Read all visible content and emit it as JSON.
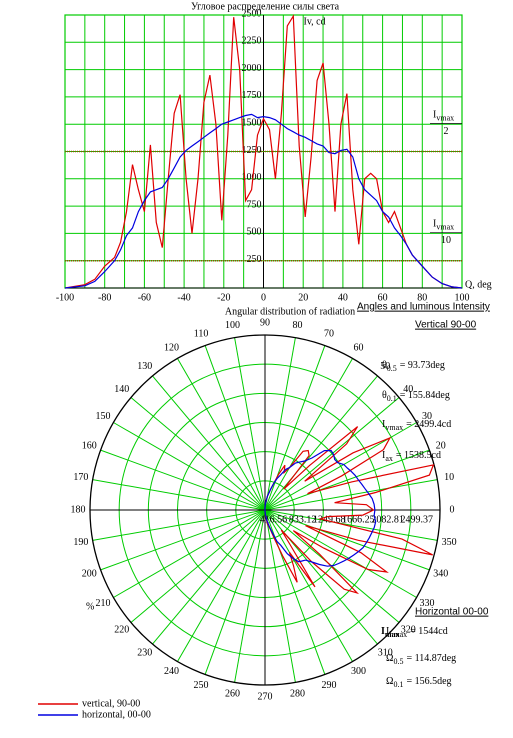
{
  "chart_data": [
    {
      "type": "line",
      "title": "Угловое распределение силы света",
      "xlabel": "Q, deg",
      "ylabel": "Iv, cd",
      "caption": "Angles and luminous Intensity",
      "x": [
        -100,
        -90,
        -85,
        -80,
        -75,
        -72,
        -69,
        -66,
        -63,
        -60,
        -57,
        -54,
        -51,
        -48,
        -45,
        -42,
        -39,
        -36,
        -33,
        -30,
        -27,
        -24,
        -21,
        -18,
        -15,
        -12,
        -9,
        -6,
        -3,
        0,
        3,
        6,
        9,
        12,
        15,
        18,
        21,
        24,
        27,
        30,
        33,
        36,
        39,
        42,
        45,
        48,
        51,
        54,
        57,
        60,
        63,
        66,
        69,
        72,
        75,
        80,
        85,
        90,
        95,
        100
      ],
      "series": [
        {
          "name": "vertical, 90-00",
          "color": "#e00000",
          "values": [
            0,
            30,
            80,
            200,
            280,
            420,
            700,
            1130,
            900,
            700,
            1310,
            600,
            370,
            1000,
            1600,
            1770,
            1000,
            500,
            1000,
            1700,
            1950,
            1500,
            620,
            1400,
            2480,
            2000,
            800,
            900,
            1400,
            1550,
            1450,
            1000,
            1600,
            2400,
            2490,
            1300,
            650,
            1200,
            1900,
            2060,
            1500,
            700,
            1500,
            1780,
            900,
            400,
            1000,
            1050,
            1000,
            700,
            600,
            700,
            550,
            400,
            300,
            200,
            100,
            40,
            10,
            0
          ]
        },
        {
          "name": "horizontal, 00-00",
          "color": "#0000e0",
          "values": [
            0,
            20,
            60,
            150,
            250,
            350,
            480,
            550,
            700,
            800,
            880,
            900,
            920,
            1000,
            1100,
            1200,
            1260,
            1300,
            1340,
            1380,
            1420,
            1460,
            1500,
            1520,
            1540,
            1560,
            1580,
            1590,
            1560,
            1570,
            1560,
            1540,
            1500,
            1460,
            1430,
            1400,
            1380,
            1350,
            1320,
            1300,
            1240,
            1230,
            1260,
            1270,
            1200,
            1000,
            900,
            850,
            800,
            700,
            650,
            550,
            480,
            400,
            300,
            200,
            100,
            40,
            10,
            0
          ]
        }
      ],
      "xlim": [
        -100,
        100
      ],
      "ylim": [
        0,
        2500
      ],
      "xticks": [
        -100,
        -80,
        -60,
        -40,
        -20,
        0,
        20,
        40,
        60,
        80,
        100
      ],
      "yticks": [
        250,
        500,
        750,
        1000,
        1250,
        1500,
        1750,
        2000,
        2250,
        2500
      ],
      "grid": true,
      "reference_lines": [
        {
          "value": 1250,
          "symbol": "I",
          "subscript": "vmax",
          "denominator": "2",
          "color": "#a04000"
        },
        {
          "value": 250,
          "symbol": "I",
          "subscript": "vmax",
          "denominator": "10",
          "color": "#a04000"
        }
      ]
    },
    {
      "type": "polar",
      "title": "Angular distribution of radiation",
      "thetaticks": [
        0,
        10,
        20,
        30,
        40,
        50,
        60,
        70,
        80,
        90,
        100,
        110,
        120,
        130,
        140,
        150,
        160,
        170,
        180,
        190,
        200,
        210,
        220,
        230,
        240,
        250,
        260,
        270,
        280,
        290,
        300,
        310,
        320,
        330,
        340,
        350
      ],
      "rlim": [
        0,
        2499.37
      ],
      "rticks": [
        416.56,
        833.12,
        1249.68,
        1666.25,
        2082.81,
        2499.37
      ],
      "grid": true,
      "legend": "lower left",
      "annotations": [
        {
          "text": "%"
        },
        {
          "symbol": "I",
          "subscript": "max"
        }
      ],
      "panels": [
        {
          "heading": "Vertical 90-00",
          "items": [
            {
              "symbol": "θ",
              "subscript": "0.5",
              "text": "= 93.73deg"
            },
            {
              "symbol": "θ",
              "subscript": "0.1",
              "text": "= 155.84deg"
            },
            {
              "symbol": "I",
              "subscript": "vmax",
              "text": "= 2499.4cd"
            },
            {
              "symbol": "I",
              "subscript": "ax",
              "text": "= 1538.5cd"
            }
          ]
        },
        {
          "heading": "Horizontal 00-00",
          "items": [
            {
              "symbol": "I",
              "subscript": "hmax",
              "text": "= 1544cd"
            },
            {
              "symbol": "Ω",
              "subscript": "0.5",
              "text": "= 114.87deg"
            },
            {
              "symbol": "Ω",
              "subscript": "0.1",
              "text": "= 156.5deg"
            }
          ]
        }
      ]
    }
  ]
}
